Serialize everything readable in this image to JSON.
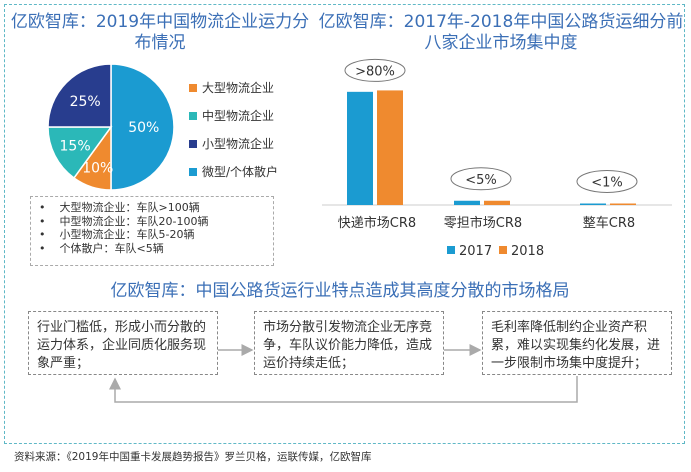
{
  "left_chart": {
    "title": "亿欧智库：2019年中国物流企业运力分布情况",
    "chart_data": {
      "type": "pie",
      "title": "亿欧智库：2019年中国物流企业运力分布情况",
      "slices": [
        {
          "name": "大型物流企业",
          "value": 10,
          "label": "10%",
          "color": "#ef8a2f"
        },
        {
          "name": "中型物流企业",
          "value": 15,
          "label": "15%",
          "color": "#2bb8b8"
        },
        {
          "name": "小型物流企业",
          "value": 25,
          "label": "25%",
          "color": "#283d8e"
        },
        {
          "name": "微型/个体散户",
          "value": 50,
          "label": "50%",
          "color": "#1b9bd1"
        }
      ],
      "legend_placement": "right"
    },
    "notes": [
      "大型物流企业：车队>100辆",
      "中型物流企业：车队20-100辆",
      "小型物流企业：车队5-20辆",
      "个体散户：车队<5辆"
    ]
  },
  "right_chart": {
    "title": "亿欧智库：2017年-2018年中国公路货运细分前八家企业市场集中度",
    "chart_data": {
      "type": "bar",
      "title": "亿欧智库：2017年-2018年中国公路货运细分前八家企业市场集中度",
      "categories": [
        "快递市场CR8",
        "零担市场CR8",
        "整车CR8"
      ],
      "series": [
        {
          "name": "2017",
          "values": [
            80,
            3,
            0.8
          ],
          "color": "#1b9bd1"
        },
        {
          "name": "2018",
          "values": [
            81,
            3,
            0.8
          ],
          "color": "#ef8a2f"
        }
      ],
      "annotations": [
        ">80%",
        "<5%",
        "<1%"
      ],
      "legend_placement": "bottom",
      "grid": false
    }
  },
  "flow": {
    "title": "亿欧智库：中国公路货运行业特点造成其高度分散的市场格局",
    "steps": [
      "行业门槛低，形成小而分散的运力体系，企业同质化服务现象严重；",
      "市场分散引发物流企业无序竞争，车队议价能力降低，造成运价持续走低；",
      "毛利率降低制约企业资产积累，难以实现集约化发展，进一步限制市场集中度提升；"
    ]
  },
  "source": "资料来源：《2019年中国重卡发展趋势报告》罗兰贝格，运联传媒，亿欧智库"
}
